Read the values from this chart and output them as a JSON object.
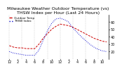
{
  "title": "Milwaukee Weather Outdoor Temperature (vs) THSW Index per Hour (Last 24 Hours)",
  "hours": [
    0,
    1,
    2,
    3,
    4,
    5,
    6,
    7,
    8,
    9,
    10,
    11,
    12,
    13,
    14,
    15,
    16,
    17,
    18,
    19,
    20,
    21,
    22,
    23
  ],
  "temp": [
    28,
    26,
    25,
    25,
    24,
    24,
    24,
    30,
    38,
    44,
    50,
    54,
    57,
    56,
    55,
    53,
    50,
    47,
    44,
    41,
    38,
    36,
    34,
    33
  ],
  "thsw": [
    20,
    18,
    17,
    16,
    15,
    15,
    15,
    22,
    35,
    48,
    58,
    64,
    65,
    63,
    60,
    52,
    46,
    40,
    35,
    30,
    26,
    23,
    21,
    20
  ],
  "temp_color": "#cc0000",
  "thsw_color": "#0000cc",
  "bg_color": "#ffffff",
  "grid_color": "#aaaaaa",
  "ylim": [
    10,
    70
  ],
  "yticks": [
    20,
    30,
    40,
    50,
    60
  ],
  "legend_temp": "Outdoor Temp",
  "legend_thsw": "THSW Index",
  "title_fontsize": 4.5,
  "tick_fontsize": 3.5
}
